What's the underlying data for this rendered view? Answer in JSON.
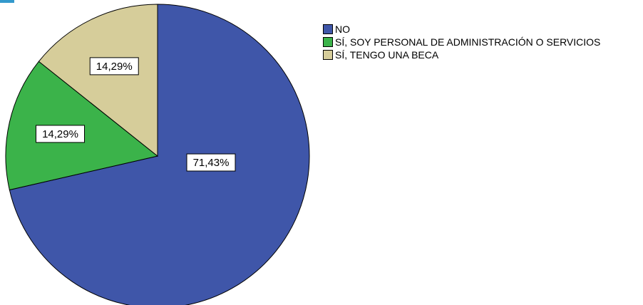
{
  "colors": {
    "accent": "#3399cc"
  },
  "chart_data": {
    "type": "pie",
    "title": "",
    "slices": [
      {
        "label": "NO",
        "value": 71.43,
        "value_label": "71,43%",
        "color": "#3f56a9"
      },
      {
        "label": "SÍ, SOY PERSONAL DE ADMINISTRACIÓN O SERVICIOS",
        "value": 14.29,
        "value_label": "14,29%",
        "color": "#3bb34a"
      },
      {
        "label": "SÍ, TENGO UNA BECA",
        "value": 14.29,
        "value_label": "14,29%",
        "color": "#d6cd9a"
      }
    ],
    "legend": {
      "placement": "top-right",
      "items": [
        "NO",
        "SÍ, SOY PERSONAL DE ADMINISTRACIÓN O SERVICIOS",
        "SÍ, TENGO UNA BECA"
      ]
    }
  }
}
